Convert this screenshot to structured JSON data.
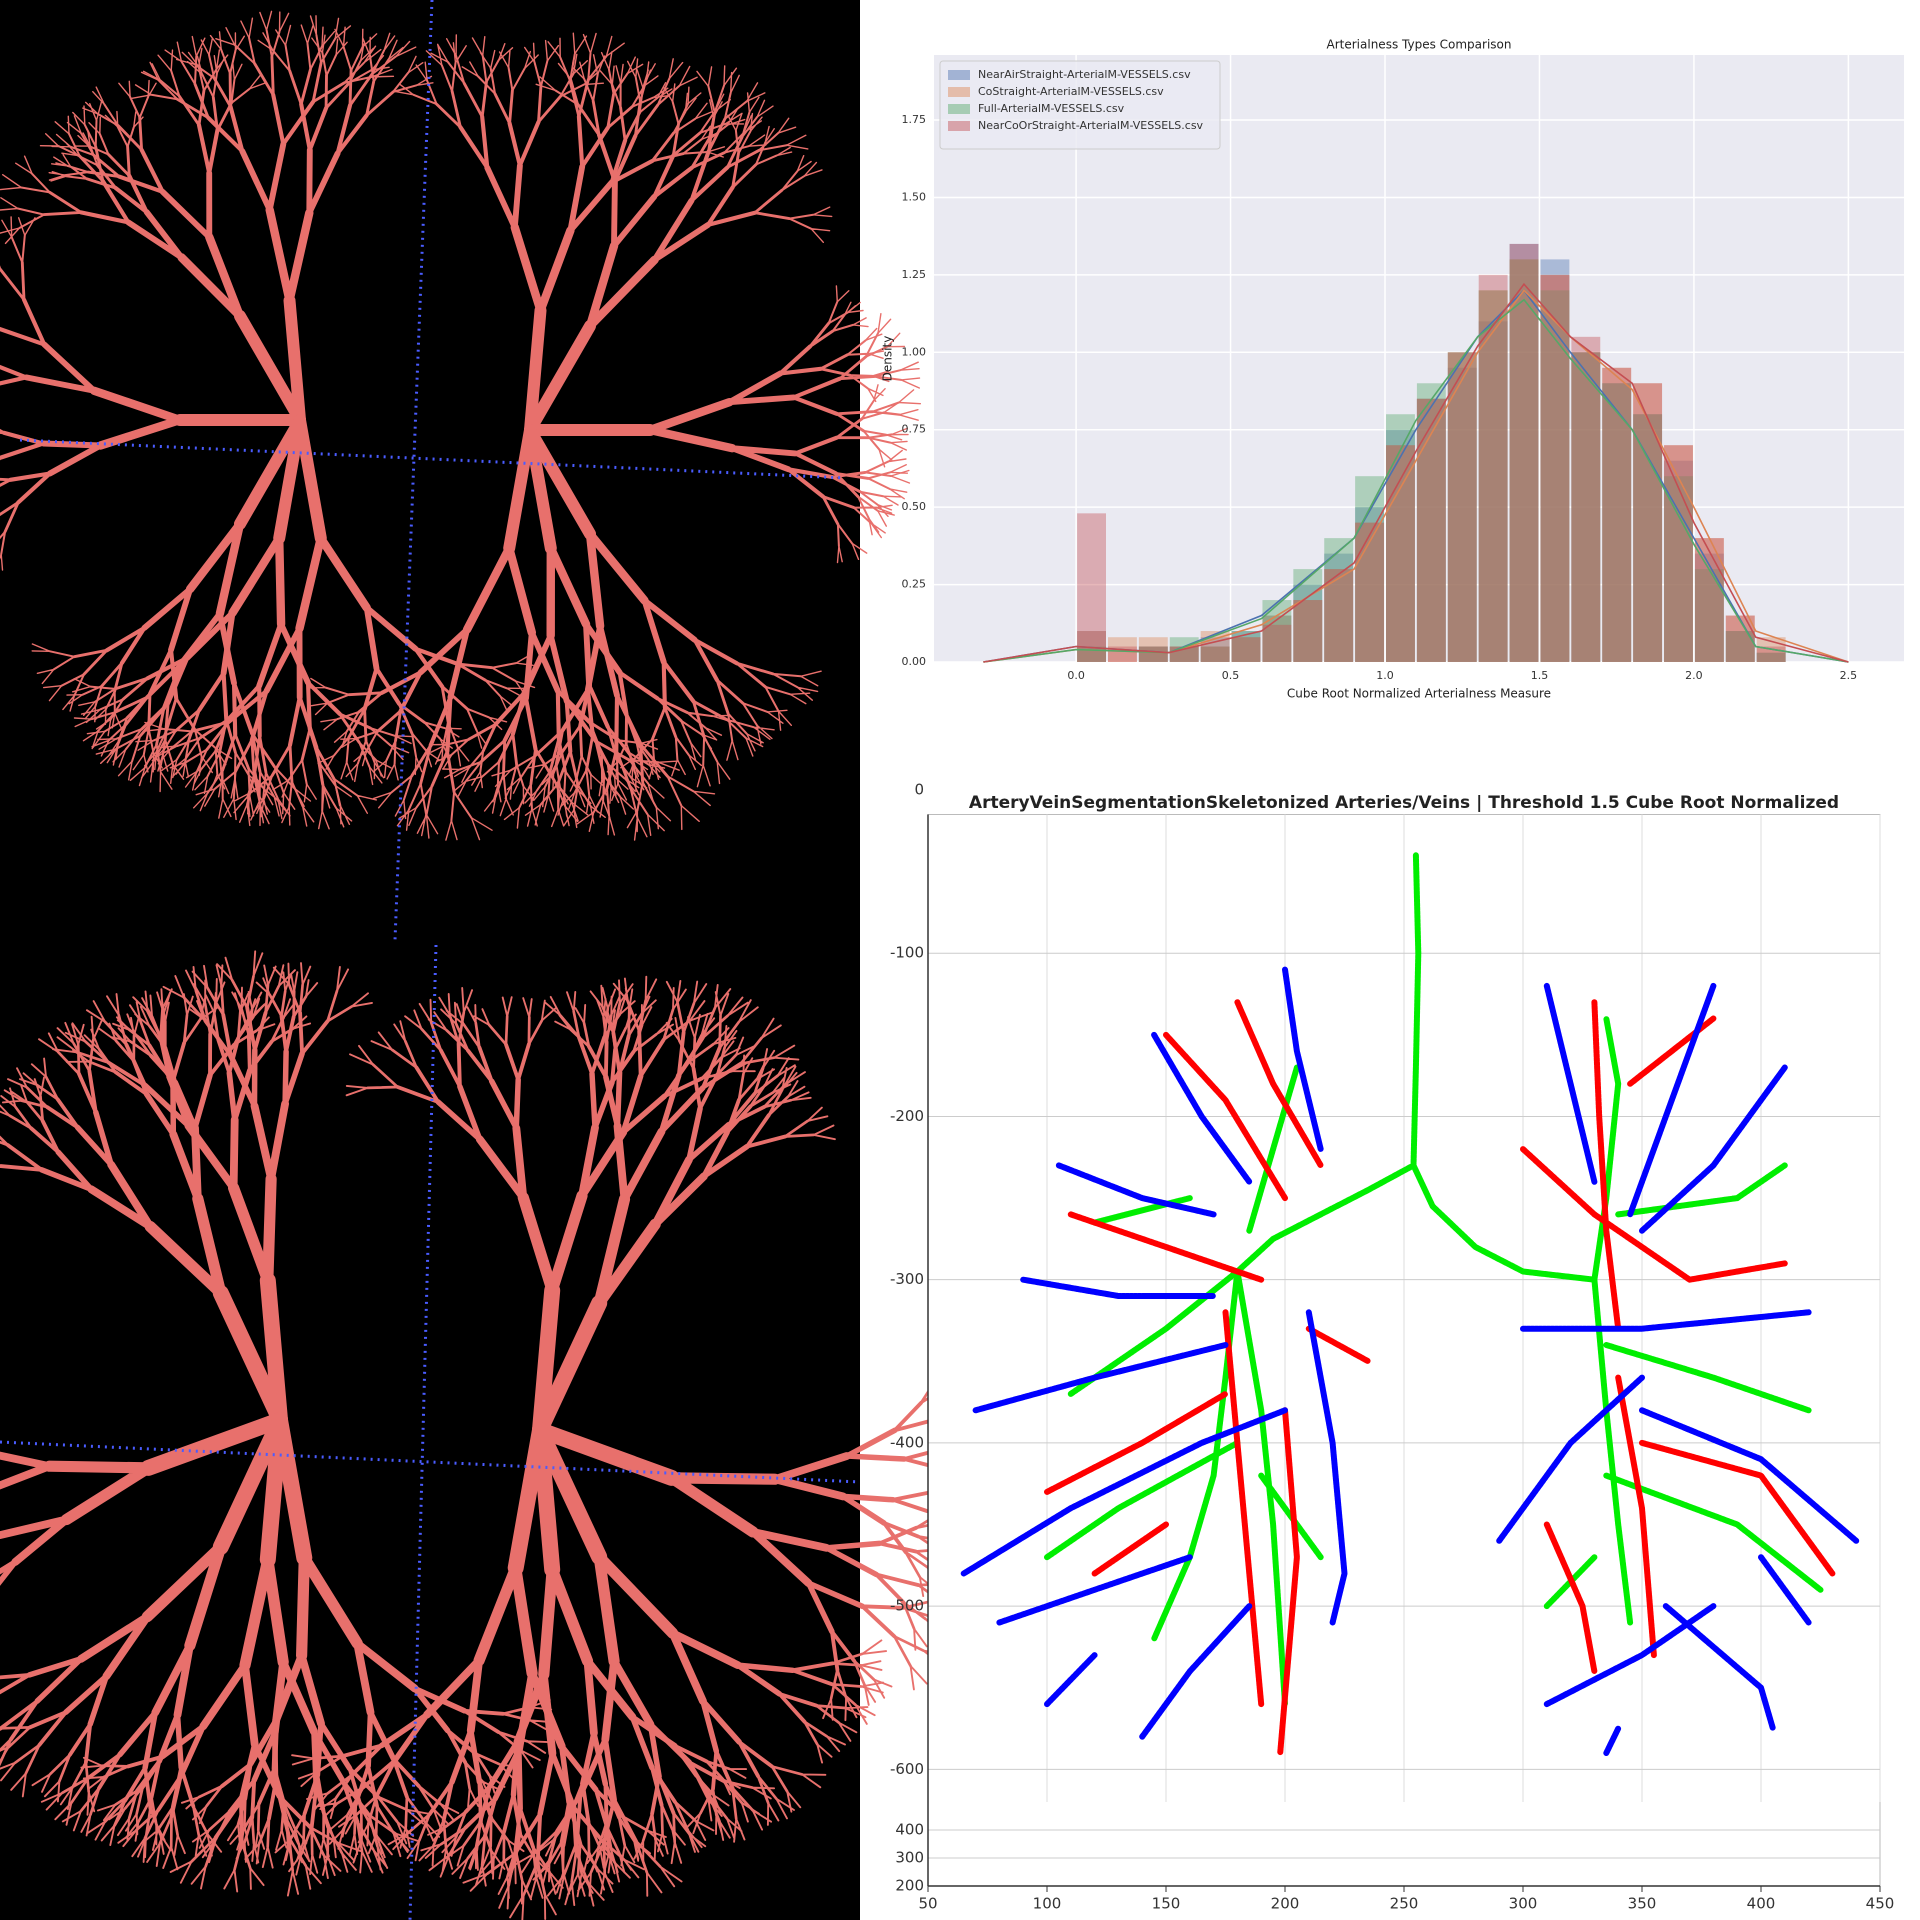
{
  "chart_data": [
    {
      "type": "histogram",
      "title": "Arterialness Types Comparison",
      "x_label": "Cube Root Normalized Arterialness Measure",
      "y_label": "Density",
      "bins": [
        0,
        0.1,
        0.2,
        0.3,
        0.4,
        0.5,
        0.6,
        0.7,
        0.8,
        0.9,
        1.0,
        1.1,
        1.2,
        1.3,
        1.4,
        1.5,
        1.6,
        1.7,
        1.8,
        1.9,
        2.0,
        2.1,
        2.2,
        2.3
      ],
      "kde_x": [
        -0.3,
        0,
        0.3,
        0.6,
        0.9,
        1.1,
        1.3,
        1.45,
        1.6,
        1.8,
        2.0,
        2.2,
        2.5
      ],
      "series": [
        {
          "name": "NearAirStraight-ArterialM-VESSELS.csv",
          "color": "#4c72b0",
          "values": [
            0.1,
            0,
            0.05,
            0.05,
            0.08,
            0.1,
            0.15,
            0.25,
            0.35,
            0.5,
            0.75,
            0.85,
            0.95,
            1.1,
            1.35,
            1.3,
            1.0,
            0.9,
            0.8,
            0.65,
            0.35,
            0.1,
            0.03
          ],
          "kde": [
            0,
            0.05,
            0.03,
            0.15,
            0.4,
            0.75,
            1.05,
            1.2,
            1.0,
            0.75,
            0.4,
            0.05,
            0
          ]
        },
        {
          "name": "CoStraight-ArterialM-VESSELS.csv",
          "color": "#dd8452",
          "values": [
            0.1,
            0.08,
            0.08,
            0.05,
            0.1,
            0.08,
            0.15,
            0.2,
            0.3,
            0.45,
            0.7,
            0.85,
            1.0,
            1.2,
            1.3,
            1.25,
            1.0,
            0.95,
            0.9,
            0.7,
            0.4,
            0.15,
            0.08
          ],
          "kde": [
            0,
            0.04,
            0.03,
            0.12,
            0.3,
            0.65,
            1.0,
            1.2,
            1.05,
            0.88,
            0.5,
            0.1,
            0
          ]
        },
        {
          "name": "Full-ArterialM-VESSELS.csv",
          "color": "#55a868",
          "values": [
            0.05,
            0,
            0.05,
            0.08,
            0.05,
            0.1,
            0.2,
            0.3,
            0.4,
            0.6,
            0.8,
            0.9,
            1.0,
            1.2,
            1.3,
            1.2,
            1.0,
            0.9,
            0.8,
            0.6,
            0.3,
            0.1,
            0.03
          ],
          "kde": [
            0,
            0.04,
            0.03,
            0.14,
            0.4,
            0.78,
            1.05,
            1.17,
            0.98,
            0.75,
            0.38,
            0.05,
            0
          ]
        },
        {
          "name": "NearCoOrStraight-ArterialM-VESSELS.csv",
          "color": "#c44e52",
          "values": [
            0.48,
            0.05,
            0.05,
            0.05,
            0.05,
            0.08,
            0.12,
            0.2,
            0.3,
            0.45,
            0.7,
            0.85,
            1.0,
            1.25,
            1.35,
            1.25,
            1.05,
            0.95,
            0.9,
            0.7,
            0.4,
            0.15,
            0.05
          ],
          "kde": [
            0,
            0.05,
            0.03,
            0.1,
            0.32,
            0.68,
            1.02,
            1.22,
            1.05,
            0.9,
            0.45,
            0.08,
            0
          ]
        }
      ],
      "xlim": [
        -0.46,
        2.68
      ],
      "ylim": [
        0,
        1.96
      ],
      "xticks": [
        {
          "value": 0,
          "label": "0.0"
        },
        0.5,
        {
          "value": 1,
          "label": "1.0"
        },
        1.5,
        {
          "value": 2,
          "label": "2.0"
        },
        2.5
      ],
      "yticks": [
        {
          "value": 0,
          "label": "0.00"
        },
        0.25,
        {
          "value": 0.5,
          "label": "0.50"
        },
        0.75,
        {
          "value": 1,
          "label": "1.00"
        },
        1.25,
        {
          "value": 1.5,
          "label": "1.50"
        },
        1.75
      ],
      "grid": true,
      "legend": "upper left"
    },
    {
      "type": "line",
      "title": "ArteryVeinSegmentationSkeletonized Arteries/Veins | Threshold 1.5 Cube Root Normalized",
      "series": [
        {
          "color": "#00ee00",
          "x": [
            255,
            256,
            255,
            254,
            null,
            254,
            235,
            215,
            195,
            180,
            null,
            254,
            262,
            280,
            300,
            330,
            null,
            180,
            175,
            170,
            160,
            145,
            null,
            180,
            190,
            195,
            200,
            null,
            180,
            150,
            110,
            null,
            185,
            195,
            205,
            null,
            180,
            130,
            100,
            null,
            190,
            215,
            null,
            160,
            120,
            null,
            330,
            335,
            340,
            335,
            null,
            330,
            335,
            340,
            345,
            null,
            335,
            380,
            420,
            null,
            335,
            390,
            425,
            null,
            340,
            390,
            410,
            null,
            330,
            310
          ],
          "values": [
            -40,
            -100,
            -170,
            -230,
            null,
            -230,
            -245,
            -260,
            -275,
            -295,
            null,
            -230,
            -255,
            -280,
            -295,
            -300,
            null,
            -295,
            -360,
            -420,
            -470,
            -520,
            null,
            -295,
            -380,
            -450,
            -560,
            null,
            -295,
            -330,
            -370,
            null,
            -270,
            -220,
            -170,
            null,
            -400,
            -440,
            -470,
            null,
            -420,
            -470,
            null,
            -250,
            -265,
            null,
            -300,
            -250,
            -180,
            -140,
            null,
            -300,
            -380,
            -450,
            -510,
            null,
            -340,
            -360,
            -380,
            null,
            -420,
            -450,
            -490,
            null,
            -260,
            -250,
            -230,
            null,
            -470,
            -500
          ]
        },
        {
          "color": "#ff0000",
          "x": [
            150,
            175,
            200,
            null,
            180,
            195,
            215,
            null,
            110,
            150,
            190,
            null,
            175,
            180,
            185,
            190,
            null,
            200,
            205,
            198,
            null,
            100,
            140,
            175,
            null,
            120,
            150,
            null,
            210,
            235,
            null,
            330,
            332,
            335,
            340,
            null,
            300,
            330,
            370,
            410,
            null,
            340,
            350,
            355,
            null,
            310,
            325,
            330,
            null,
            350,
            400,
            430,
            null,
            345,
            380
          ],
          "values": [
            -150,
            -190,
            -250,
            null,
            -130,
            -180,
            -230,
            null,
            -260,
            -280,
            -300,
            null,
            -320,
            -400,
            -480,
            -560,
            null,
            -380,
            -470,
            -590,
            null,
            -430,
            -400,
            -370,
            null,
            -480,
            -450,
            null,
            -330,
            -350,
            null,
            -130,
            -200,
            -270,
            -330,
            null,
            -220,
            -260,
            -300,
            -290,
            null,
            -360,
            -440,
            -530,
            null,
            -450,
            -500,
            -540,
            null,
            -400,
            -420,
            -480,
            null,
            -180,
            -140
          ]
        },
        {
          "color": "#0000ff",
          "x": [
            200,
            205,
            215,
            null,
            145,
            165,
            185,
            null,
            105,
            140,
            170,
            null,
            70,
            120,
            175,
            null,
            65,
            110,
            165,
            200,
            null,
            80,
            120,
            160,
            null,
            140,
            160,
            185,
            null,
            100,
            120,
            null,
            210,
            220,
            225,
            220,
            null,
            90,
            130,
            170,
            null,
            310,
            320,
            330,
            null,
            380,
            360,
            345,
            null,
            410,
            380,
            350,
            null,
            300,
            350,
            420,
            null,
            290,
            320,
            350,
            null,
            310,
            350,
            380,
            null,
            350,
            400,
            440,
            null,
            360,
            400,
            405,
            null,
            335,
            340,
            null,
            400,
            420
          ],
          "values": [
            -110,
            -160,
            -220,
            null,
            -150,
            -200,
            -240,
            null,
            -230,
            -250,
            -260,
            null,
            -380,
            -360,
            -340,
            null,
            -480,
            -440,
            -400,
            -380,
            null,
            -510,
            -490,
            -470,
            null,
            -580,
            -540,
            -500,
            null,
            -560,
            -530,
            null,
            -320,
            -400,
            -480,
            -510,
            null,
            -300,
            -310,
            -310,
            null,
            -120,
            -180,
            -240,
            null,
            -120,
            -200,
            -260,
            null,
            -170,
            -230,
            -270,
            null,
            -330,
            -330,
            -320,
            null,
            -460,
            -400,
            -360,
            null,
            -560,
            -530,
            -500,
            null,
            -380,
            -410,
            -460,
            null,
            -500,
            -550,
            -575,
            null,
            -590,
            -575,
            null,
            -470,
            -510
          ]
        }
      ],
      "xlim": [
        50,
        450
      ],
      "ylim": [
        -15,
        -620
      ],
      "zlim": [
        500,
        200
      ],
      "xticks": [
        50,
        100,
        150,
        200,
        250,
        300,
        350,
        400,
        450
      ],
      "yticks": [
        0,
        -100,
        -200,
        -300,
        -400,
        -500,
        -600
      ],
      "zticks": [
        400,
        300,
        200
      ],
      "grid": true
    }
  ]
}
